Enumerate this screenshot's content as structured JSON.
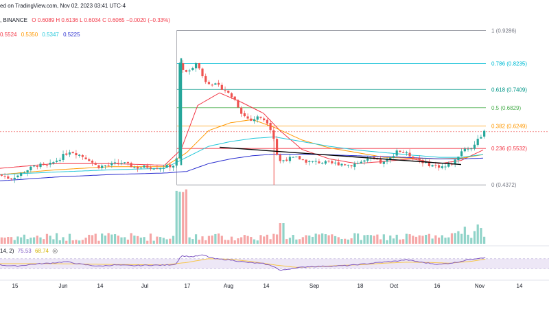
{
  "header": {
    "line1": "ed on TradingView.com, Nov 02, 2023 03:41 UTC-4",
    "exchange": ", BINANCE",
    "ohlc": "O 0.6089  H 0.6136  L 0.6034  C 0.6065  −0.0020 (−0.33%)"
  },
  "ma_legend": {
    "red": "0.5524",
    "orange": "0.5350",
    "cyan": "0.5347",
    "blue": "0.5225"
  },
  "rsi_legend": {
    "params": "14, 2)",
    "value": "75.53",
    "ma_value": "68.74",
    "eye_icon": "eye-icon"
  },
  "colors": {
    "up": "#26a69a",
    "down": "#ef5350",
    "red_ma": "#f23645",
    "orange_ma": "#ff9800",
    "cyan_ma": "#22c7d9",
    "blue_ma": "#2a2ecf",
    "rsi": "#7e57c2",
    "rsi_ma": "#f7c548"
  },
  "chart_data": {
    "type": "candlestick",
    "title": ", BINANCE",
    "x_tick_labels": [
      "15",
      "Jun",
      "14",
      "Jul",
      "17",
      "Aug",
      "14",
      "Sep",
      "18",
      "Oct",
      "16",
      "Nov",
      "14"
    ],
    "ylim": [
      0.37,
      0.96
    ],
    "fibonacci": [
      {
        "level": "1",
        "value": 0.9286,
        "label": "1 (0.9286)",
        "color": "#787b86"
      },
      {
        "level": "0.786",
        "value": 0.8235,
        "label": "0.786 (0.8235)",
        "color": "#00bcd4"
      },
      {
        "level": "0.618",
        "value": 0.7409,
        "label": "0.618 (0.7409)",
        "color": "#009688"
      },
      {
        "level": "0.5",
        "value": 0.6829,
        "label": "0.5 (0.6829)",
        "color": "#4caf50"
      },
      {
        "level": "0.382",
        "value": 0.6249,
        "label": "0.382 (0.6249)",
        "color": "#ff9800"
      },
      {
        "level": "0.236",
        "value": 0.5532,
        "label": "0.236 (0.5532)",
        "color": "#f23645"
      },
      {
        "level": "0",
        "value": 0.4372,
        "label": "0 (0.4372)",
        "color": "#787b86"
      }
    ],
    "last_close": 0.6065,
    "trendline": {
      "from": [
        0.4,
        0.557
      ],
      "to": [
        0.84,
        0.502
      ]
    },
    "price_anchors": [
      [
        0.0,
        0.47
      ],
      [
        0.02,
        0.458
      ],
      [
        0.035,
        0.467
      ],
      [
        0.05,
        0.483
      ],
      [
        0.07,
        0.5
      ],
      [
        0.09,
        0.497
      ],
      [
        0.11,
        0.52
      ],
      [
        0.13,
        0.545
      ],
      [
        0.145,
        0.535
      ],
      [
        0.165,
        0.518
      ],
      [
        0.18,
        0.495
      ],
      [
        0.2,
        0.5
      ],
      [
        0.225,
        0.508
      ],
      [
        0.25,
        0.492
      ],
      [
        0.27,
        0.495
      ],
      [
        0.295,
        0.492
      ],
      [
        0.32,
        0.5
      ],
      [
        0.325,
        0.52
      ],
      [
        0.33,
        0.82
      ],
      [
        0.345,
        0.79
      ],
      [
        0.36,
        0.83
      ],
      [
        0.375,
        0.77
      ],
      [
        0.395,
        0.755
      ],
      [
        0.41,
        0.743
      ],
      [
        0.43,
        0.71
      ],
      [
        0.445,
        0.66
      ],
      [
        0.46,
        0.642
      ],
      [
        0.475,
        0.655
      ],
      [
        0.49,
        0.638
      ],
      [
        0.5,
        0.6
      ],
      [
        0.51,
        0.51
      ],
      [
        0.525,
        0.52
      ],
      [
        0.545,
        0.523
      ],
      [
        0.565,
        0.51
      ],
      [
        0.585,
        0.51
      ],
      [
        0.605,
        0.505
      ],
      [
        0.625,
        0.505
      ],
      [
        0.64,
        0.5
      ],
      [
        0.66,
        0.51
      ],
      [
        0.68,
        0.52
      ],
      [
        0.7,
        0.505
      ],
      [
        0.715,
        0.523
      ],
      [
        0.725,
        0.548
      ],
      [
        0.74,
        0.538
      ],
      [
        0.76,
        0.523
      ],
      [
        0.78,
        0.505
      ],
      [
        0.795,
        0.497
      ],
      [
        0.815,
        0.495
      ],
      [
        0.83,
        0.51
      ],
      [
        0.845,
        0.55
      ],
      [
        0.86,
        0.553
      ],
      [
        0.875,
        0.585
      ],
      [
        0.885,
        0.6065
      ]
    ],
    "moving_averages": [
      {
        "name": "red",
        "value": 0.5524,
        "anchors": [
          [
            0.0,
            0.49
          ],
          [
            0.1,
            0.505
          ],
          [
            0.2,
            0.505
          ],
          [
            0.3,
            0.5
          ],
          [
            0.33,
            0.55
          ],
          [
            0.36,
            0.69
          ],
          [
            0.4,
            0.73
          ],
          [
            0.44,
            0.7
          ],
          [
            0.48,
            0.665
          ],
          [
            0.51,
            0.61
          ],
          [
            0.55,
            0.55
          ],
          [
            0.6,
            0.52
          ],
          [
            0.65,
            0.505
          ],
          [
            0.7,
            0.512
          ],
          [
            0.75,
            0.52
          ],
          [
            0.8,
            0.505
          ],
          [
            0.84,
            0.515
          ],
          [
            0.885,
            0.5524
          ]
        ]
      },
      {
        "name": "orange",
        "value": 0.535,
        "anchors": [
          [
            0.0,
            0.47
          ],
          [
            0.1,
            0.485
          ],
          [
            0.2,
            0.495
          ],
          [
            0.3,
            0.495
          ],
          [
            0.34,
            0.54
          ],
          [
            0.38,
            0.61
          ],
          [
            0.42,
            0.635
          ],
          [
            0.46,
            0.645
          ],
          [
            0.5,
            0.62
          ],
          [
            0.55,
            0.58
          ],
          [
            0.6,
            0.555
          ],
          [
            0.65,
            0.54
          ],
          [
            0.7,
            0.525
          ],
          [
            0.75,
            0.522
          ],
          [
            0.8,
            0.52
          ],
          [
            0.84,
            0.522
          ],
          [
            0.885,
            0.535
          ]
        ]
      },
      {
        "name": "cyan",
        "value": 0.5347,
        "anchors": [
          [
            0.0,
            0.47
          ],
          [
            0.1,
            0.478
          ],
          [
            0.2,
            0.485
          ],
          [
            0.3,
            0.49
          ],
          [
            0.34,
            0.525
          ],
          [
            0.38,
            0.56
          ],
          [
            0.42,
            0.575
          ],
          [
            0.46,
            0.585
          ],
          [
            0.5,
            0.59
          ],
          [
            0.55,
            0.575
          ],
          [
            0.6,
            0.56
          ],
          [
            0.65,
            0.548
          ],
          [
            0.7,
            0.54
          ],
          [
            0.75,
            0.532
          ],
          [
            0.8,
            0.525
          ],
          [
            0.84,
            0.525
          ],
          [
            0.885,
            0.535
          ]
        ]
      },
      {
        "name": "blue",
        "value": 0.5225,
        "anchors": [
          [
            0.0,
            0.45
          ],
          [
            0.1,
            0.462
          ],
          [
            0.2,
            0.47
          ],
          [
            0.3,
            0.475
          ],
          [
            0.34,
            0.48
          ],
          [
            0.38,
            0.505
          ],
          [
            0.42,
            0.52
          ],
          [
            0.46,
            0.53
          ],
          [
            0.5,
            0.535
          ],
          [
            0.55,
            0.535
          ],
          [
            0.6,
            0.533
          ],
          [
            0.65,
            0.53
          ],
          [
            0.7,
            0.527
          ],
          [
            0.75,
            0.524
          ],
          [
            0.8,
            0.52
          ],
          [
            0.84,
            0.52
          ],
          [
            0.885,
            0.5225
          ]
        ]
      }
    ],
    "rsi": {
      "value": 75.53,
      "ma": 68.74,
      "anchors": [
        [
          0.0,
          45
        ],
        [
          0.03,
          40
        ],
        [
          0.06,
          48
        ],
        [
          0.09,
          52
        ],
        [
          0.12,
          58
        ],
        [
          0.15,
          47
        ],
        [
          0.18,
          40
        ],
        [
          0.21,
          45
        ],
        [
          0.24,
          42
        ],
        [
          0.27,
          44
        ],
        [
          0.3,
          44
        ],
        [
          0.32,
          48
        ],
        [
          0.33,
          82
        ],
        [
          0.35,
          78
        ],
        [
          0.37,
          85
        ],
        [
          0.39,
          70
        ],
        [
          0.42,
          65
        ],
        [
          0.45,
          55
        ],
        [
          0.48,
          50
        ],
        [
          0.5,
          38
        ],
        [
          0.51,
          22
        ],
        [
          0.53,
          30
        ],
        [
          0.56,
          38
        ],
        [
          0.6,
          40
        ],
        [
          0.63,
          42
        ],
        [
          0.66,
          48
        ],
        [
          0.69,
          55
        ],
        [
          0.72,
          60
        ],
        [
          0.74,
          66
        ],
        [
          0.77,
          55
        ],
        [
          0.8,
          47
        ],
        [
          0.83,
          55
        ],
        [
          0.85,
          65
        ],
        [
          0.87,
          72
        ],
        [
          0.885,
          75.53
        ]
      ],
      "ma_anchors": [
        [
          0.0,
          50
        ],
        [
          0.1,
          50
        ],
        [
          0.2,
          47
        ],
        [
          0.3,
          45
        ],
        [
          0.34,
          55
        ],
        [
          0.38,
          70
        ],
        [
          0.42,
          68
        ],
        [
          0.46,
          58
        ],
        [
          0.5,
          45
        ],
        [
          0.54,
          35
        ],
        [
          0.58,
          38
        ],
        [
          0.62,
          43
        ],
        [
          0.66,
          46
        ],
        [
          0.7,
          52
        ],
        [
          0.74,
          56
        ],
        [
          0.78,
          55
        ],
        [
          0.82,
          52
        ],
        [
          0.86,
          60
        ],
        [
          0.885,
          68.74
        ]
      ]
    }
  }
}
